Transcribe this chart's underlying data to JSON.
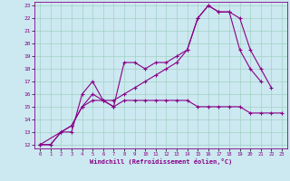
{
  "bg_color": "#cce8f0",
  "line_color": "#880088",
  "grid_color": "#99ccbb",
  "xlim": [
    -0.5,
    23.5
  ],
  "ylim": [
    11.7,
    23.3
  ],
  "xticks": [
    0,
    1,
    2,
    3,
    4,
    5,
    6,
    7,
    8,
    9,
    10,
    11,
    12,
    13,
    14,
    15,
    16,
    17,
    18,
    19,
    20,
    21,
    22,
    23
  ],
  "yticks": [
    12,
    13,
    14,
    15,
    16,
    17,
    18,
    19,
    20,
    21,
    22,
    23
  ],
  "xlabel": "Windchill (Refroidissement éolien,°C)",
  "s1_x": [
    0,
    1,
    2,
    3,
    4,
    5,
    6,
    7,
    8,
    9,
    10,
    11,
    12,
    13,
    14,
    15,
    16,
    17,
    18,
    19,
    20,
    21
  ],
  "s1_y": [
    12,
    12,
    13,
    13,
    16,
    17,
    15.5,
    15,
    18.5,
    18.5,
    18,
    18.5,
    18.5,
    19,
    19.5,
    22,
    23,
    22.5,
    22.5,
    19.5,
    18,
    17
  ],
  "s2_x": [
    0,
    1,
    2,
    3,
    4,
    5,
    6,
    7,
    8,
    9,
    10,
    11,
    12,
    13,
    14,
    15,
    16,
    17,
    18,
    19,
    20,
    21,
    22,
    23
  ],
  "s2_y": [
    12,
    12,
    13,
    13.5,
    15,
    15.5,
    15.5,
    15,
    15.5,
    15.5,
    15.5,
    15.5,
    15.5,
    15.5,
    15.5,
    15,
    15,
    15,
    15,
    15,
    14.5,
    14.5,
    14.5,
    14.5
  ],
  "s3_x": [
    0,
    2,
    3,
    4,
    5,
    6,
    7,
    8,
    9,
    10,
    11,
    12,
    13,
    14,
    15,
    16,
    17,
    18,
    19,
    20,
    21,
    22
  ],
  "s3_y": [
    12,
    13,
    13.5,
    15,
    16,
    15.5,
    15.5,
    16,
    16.5,
    17,
    17.5,
    18,
    18.5,
    19.5,
    22,
    23,
    22.5,
    22.5,
    22,
    19.5,
    18,
    16.5
  ]
}
